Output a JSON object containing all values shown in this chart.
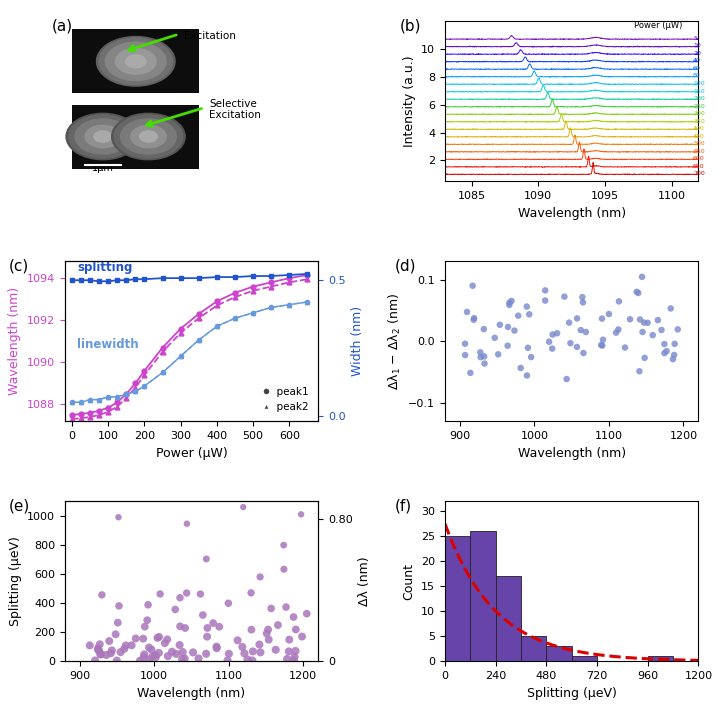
{
  "panel_b": {
    "powers": [
      5,
      10,
      20,
      40,
      60,
      80,
      100,
      150,
      200,
      250,
      300,
      350,
      400,
      450,
      500,
      550,
      600,
      650,
      700
    ],
    "colors": [
      "#7700bb",
      "#5500cc",
      "#3300ff",
      "#0033ff",
      "#0066ff",
      "#0099ff",
      "#00bbff",
      "#00ccdd",
      "#00cc99",
      "#33cc33",
      "#77cc00",
      "#aacc00",
      "#ccbb00",
      "#ddaa00",
      "#ee7700",
      "#ff5500",
      "#ff3300",
      "#ee1100",
      "#cc0000"
    ]
  },
  "panel_c": {
    "power": [
      0,
      25,
      50,
      75,
      100,
      125,
      150,
      175,
      200,
      250,
      300,
      350,
      400,
      450,
      500,
      550,
      600,
      650
    ],
    "peak1_wl": [
      1087.5,
      1087.55,
      1087.6,
      1087.7,
      1087.85,
      1088.1,
      1088.5,
      1089.0,
      1089.6,
      1090.7,
      1091.6,
      1092.3,
      1092.9,
      1093.3,
      1093.6,
      1093.8,
      1094.0,
      1094.15
    ],
    "peak2_wl": [
      1087.3,
      1087.35,
      1087.4,
      1087.5,
      1087.65,
      1087.9,
      1088.3,
      1088.8,
      1089.4,
      1090.5,
      1091.4,
      1092.1,
      1092.7,
      1093.1,
      1093.4,
      1093.6,
      1093.8,
      1093.95
    ],
    "splitting_wl": [
      1093.9,
      1093.9,
      1093.9,
      1093.85,
      1093.85,
      1093.9,
      1093.9,
      1093.95,
      1093.95,
      1094.0,
      1094.0,
      1094.0,
      1094.05,
      1094.05,
      1094.1,
      1094.1,
      1094.15,
      1094.2
    ],
    "linewidth1": [
      0.05,
      0.05,
      0.06,
      0.06,
      0.07,
      0.07,
      0.08,
      0.09,
      0.11,
      0.16,
      0.22,
      0.28,
      0.33,
      0.36,
      0.38,
      0.4,
      0.41,
      0.42
    ],
    "linewidth2": [
      0.05,
      0.05,
      0.06,
      0.06,
      0.07,
      0.07,
      0.08,
      0.09,
      0.11,
      0.16,
      0.22,
      0.28,
      0.33,
      0.36,
      0.38,
      0.4,
      0.41,
      0.42
    ],
    "wavelength_color": "#cc44cc",
    "splitting_color": "#2255cc",
    "linewidth_color": "#6699dd"
  },
  "panel_d": {
    "dot_color": "#7788cc",
    "xlim": [
      880,
      1220
    ],
    "ylim": [
      -0.13,
      0.13
    ]
  },
  "panel_e": {
    "dot_color": "#aa77bb",
    "xlim": [
      880,
      1220
    ],
    "ylim": [
      0,
      1100
    ]
  },
  "panel_f": {
    "bin_edges": [
      0,
      120,
      240,
      360,
      480,
      600,
      720,
      840,
      960,
      1080,
      1200
    ],
    "counts": [
      25,
      26,
      17,
      5,
      3,
      1,
      0,
      0,
      1,
      0
    ],
    "bar_color": "#6644aa",
    "bar_edge_color": "#222222",
    "fit_color": "#dd0000",
    "xlim": [
      0,
      1200
    ],
    "ylim": [
      0,
      32
    ]
  },
  "label_fontsize": 11,
  "axis_fontsize": 9,
  "tick_fontsize": 8,
  "background_color": "#ffffff"
}
